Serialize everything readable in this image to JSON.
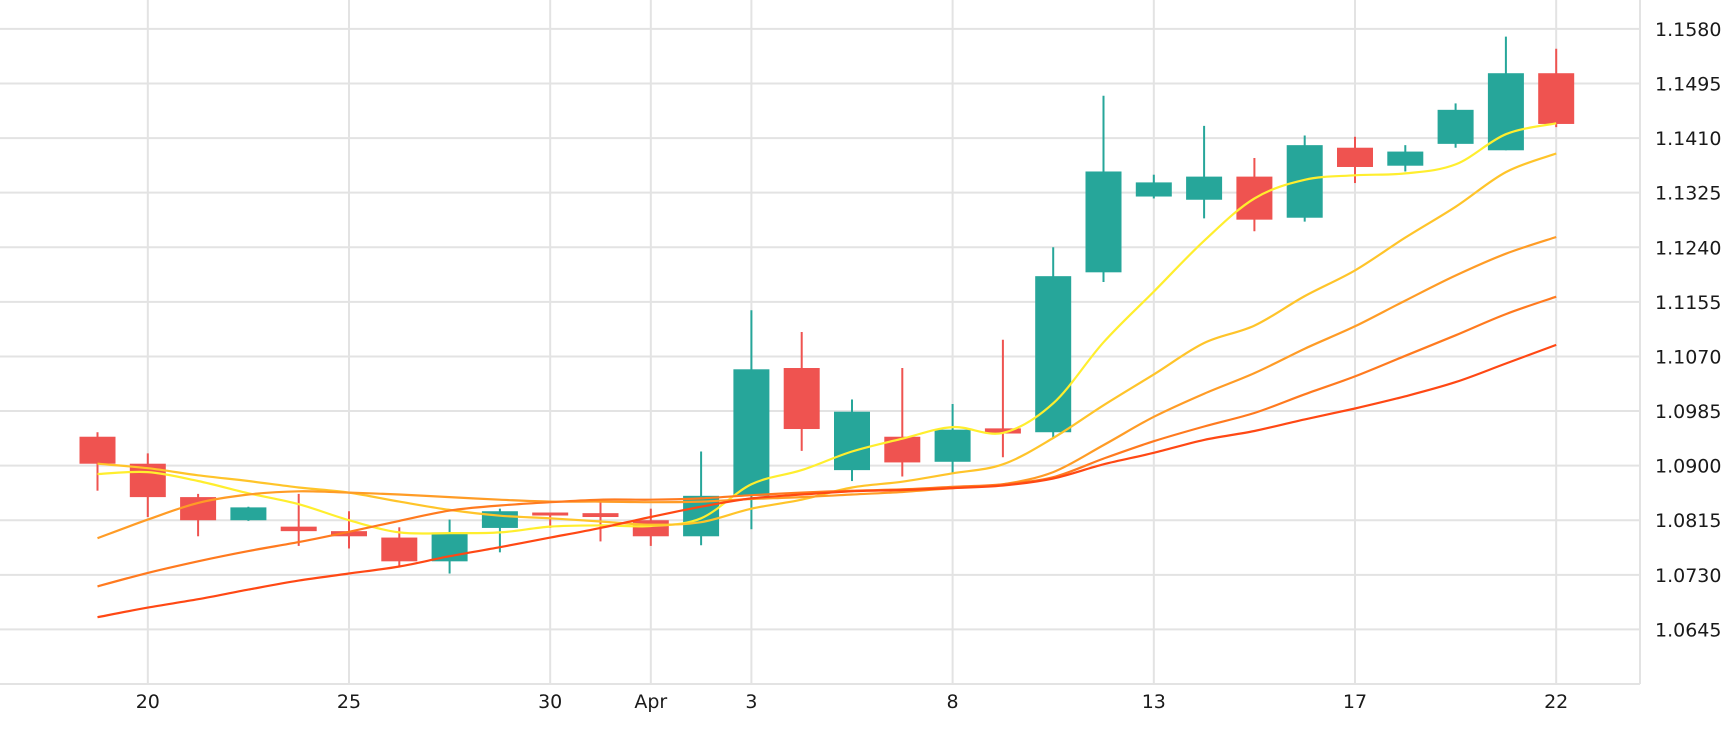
{
  "chart_data": {
    "type": "candlestick",
    "title": "",
    "xlabel": "",
    "ylabel": "",
    "ylim": [
      1.056,
      1.1625
    ],
    "grid": true,
    "colors": {
      "up": "#26a69a",
      "down": "#ef5350",
      "grid": "#e3e3e3"
    },
    "x_ticks": [
      {
        "i": 1,
        "label": "20"
      },
      {
        "i": 5,
        "label": "25"
      },
      {
        "i": 9,
        "label": "30"
      },
      {
        "i": 11,
        "label": "Apr"
      },
      {
        "i": 13,
        "label": "3"
      },
      {
        "i": 17,
        "label": "8"
      },
      {
        "i": 21,
        "label": "13"
      },
      {
        "i": 25,
        "label": "17"
      },
      {
        "i": 29,
        "label": "22"
      }
    ],
    "y_ticks": [
      "1.0645",
      "1.0730",
      "1.0815",
      "1.0900",
      "1.0985",
      "1.1070",
      "1.1155",
      "1.1240",
      "1.1325",
      "1.1410",
      "1.1495",
      "1.1580"
    ],
    "candles": [
      {
        "o": 1.0945,
        "h": 1.0952,
        "l": 1.0861,
        "c": 1.0903
      },
      {
        "o": 1.0903,
        "h": 1.0919,
        "l": 1.082,
        "c": 1.0851
      },
      {
        "o": 1.0851,
        "h": 1.0856,
        "l": 1.079,
        "c": 1.0815
      },
      {
        "o": 1.0815,
        "h": 1.0836,
        "l": 1.0814,
        "c": 1.0835
      },
      {
        "o": 1.0805,
        "h": 1.0856,
        "l": 1.0775,
        "c": 1.0798
      },
      {
        "o": 1.0798,
        "h": 1.0829,
        "l": 1.0771,
        "c": 1.079
      },
      {
        "o": 1.0788,
        "h": 1.0804,
        "l": 1.0744,
        "c": 1.0751
      },
      {
        "o": 1.0751,
        "h": 1.0816,
        "l": 1.0732,
        "c": 1.0796
      },
      {
        "o": 1.0803,
        "h": 1.0833,
        "l": 1.0765,
        "c": 1.0829
      },
      {
        "o": 1.0827,
        "h": 1.0827,
        "l": 1.0803,
        "c": 1.0824
      },
      {
        "o": 1.0826,
        "h": 1.0846,
        "l": 1.0782,
        "c": 1.082
      },
      {
        "o": 1.0815,
        "h": 1.0833,
        "l": 1.0775,
        "c": 1.079
      },
      {
        "o": 1.079,
        "h": 1.0922,
        "l": 1.0776,
        "c": 1.0853
      },
      {
        "o": 1.0853,
        "h": 1.1142,
        "l": 1.0801,
        "c": 1.105
      },
      {
        "o": 1.1052,
        "h": 1.1108,
        "l": 1.0923,
        "c": 1.0957
      },
      {
        "o": 1.0893,
        "h": 1.1003,
        "l": 1.0876,
        "c": 1.0984
      },
      {
        "o": 1.0945,
        "h": 1.1052,
        "l": 1.0883,
        "c": 1.0905
      },
      {
        "o": 1.0906,
        "h": 1.0996,
        "l": 1.0889,
        "c": 1.0956
      },
      {
        "o": 1.0958,
        "h": 1.1096,
        "l": 1.0913,
        "c": 1.095
      },
      {
        "o": 1.0952,
        "h": 1.124,
        "l": 1.0943,
        "c": 1.1195
      },
      {
        "o": 1.1201,
        "h": 1.1476,
        "l": 1.1186,
        "c": 1.1358
      },
      {
        "o": 1.1319,
        "h": 1.1353,
        "l": 1.1316,
        "c": 1.1341
      },
      {
        "o": 1.1314,
        "h": 1.1429,
        "l": 1.1285,
        "c": 1.135
      },
      {
        "o": 1.135,
        "h": 1.1379,
        "l": 1.1265,
        "c": 1.1283
      },
      {
        "o": 1.1286,
        "h": 1.1414,
        "l": 1.128,
        "c": 1.1399
      },
      {
        "o": 1.1395,
        "h": 1.1412,
        "l": 1.134,
        "c": 1.1365
      },
      {
        "o": 1.1367,
        "h": 1.1399,
        "l": 1.1358,
        "c": 1.1389
      },
      {
        "o": 1.1401,
        "h": 1.1464,
        "l": 1.1395,
        "c": 1.1454
      },
      {
        "o": 1.1391,
        "h": 1.1568,
        "l": 1.1391,
        "c": 1.1511
      },
      {
        "o": 1.1511,
        "h": 1.1549,
        "l": 1.1427,
        "c": 1.1432
      }
    ],
    "series": [
      {
        "color": "#ffee2e",
        "values": [
          1.0887,
          1.089,
          1.0876,
          1.0857,
          1.084,
          1.0815,
          1.0796,
          1.0795,
          1.0796,
          1.0805,
          1.0807,
          1.0806,
          1.0818,
          1.0871,
          1.0893,
          1.0922,
          1.0942,
          1.096,
          1.0951,
          1.0997,
          1.1092,
          1.1171,
          1.125,
          1.1316,
          1.1345,
          1.1352,
          1.1355,
          1.1369,
          1.1416,
          1.1433
        ]
      },
      {
        "color": "#ffc42a",
        "values": [
          1.0903,
          1.0896,
          1.0885,
          1.0876,
          1.0866,
          1.0858,
          1.0844,
          1.0831,
          1.0822,
          1.0818,
          1.0813,
          1.0808,
          1.0812,
          1.0833,
          1.0847,
          1.0866,
          1.0875,
          1.0888,
          1.0902,
          1.0943,
          1.0994,
          1.1042,
          1.1091,
          1.1118,
          1.1164,
          1.1204,
          1.1255,
          1.1303,
          1.1357,
          1.1386
        ]
      },
      {
        "color": "#ff9c26",
        "values": [
          1.0787,
          1.0816,
          1.0842,
          1.0855,
          1.086,
          1.0858,
          1.0855,
          1.0851,
          1.0847,
          1.0844,
          1.0844,
          1.0843,
          1.0844,
          1.0848,
          1.0851,
          1.0855,
          1.0859,
          1.0865,
          1.0871,
          1.089,
          1.0932,
          1.0976,
          1.1012,
          1.1044,
          1.1082,
          1.1117,
          1.1157,
          1.1196,
          1.123,
          1.1256
        ]
      },
      {
        "color": "#ff7a1f",
        "values": [
          1.0712,
          1.0733,
          1.0751,
          1.0767,
          1.0781,
          1.0797,
          1.0814,
          1.083,
          1.0838,
          1.0843,
          1.0847,
          1.0847,
          1.0849,
          1.0854,
          1.0858,
          1.0861,
          1.0863,
          1.0867,
          1.0871,
          1.0882,
          1.0911,
          1.0938,
          1.0961,
          1.0982,
          1.1011,
          1.1039,
          1.1071,
          1.1103,
          1.1136,
          1.1163
        ]
      },
      {
        "color": "#ff4814",
        "values": [
          1.0664,
          1.0679,
          1.0692,
          1.0707,
          1.0721,
          1.0732,
          1.0743,
          1.0759,
          1.0773,
          1.0788,
          1.0803,
          1.082,
          1.0836,
          1.0849,
          1.0855,
          1.086,
          1.0862,
          1.0865,
          1.0869,
          1.088,
          1.0902,
          1.092,
          1.094,
          1.0954,
          1.0972,
          1.0989,
          1.1008,
          1.103,
          1.1059,
          1.1088
        ]
      }
    ]
  }
}
